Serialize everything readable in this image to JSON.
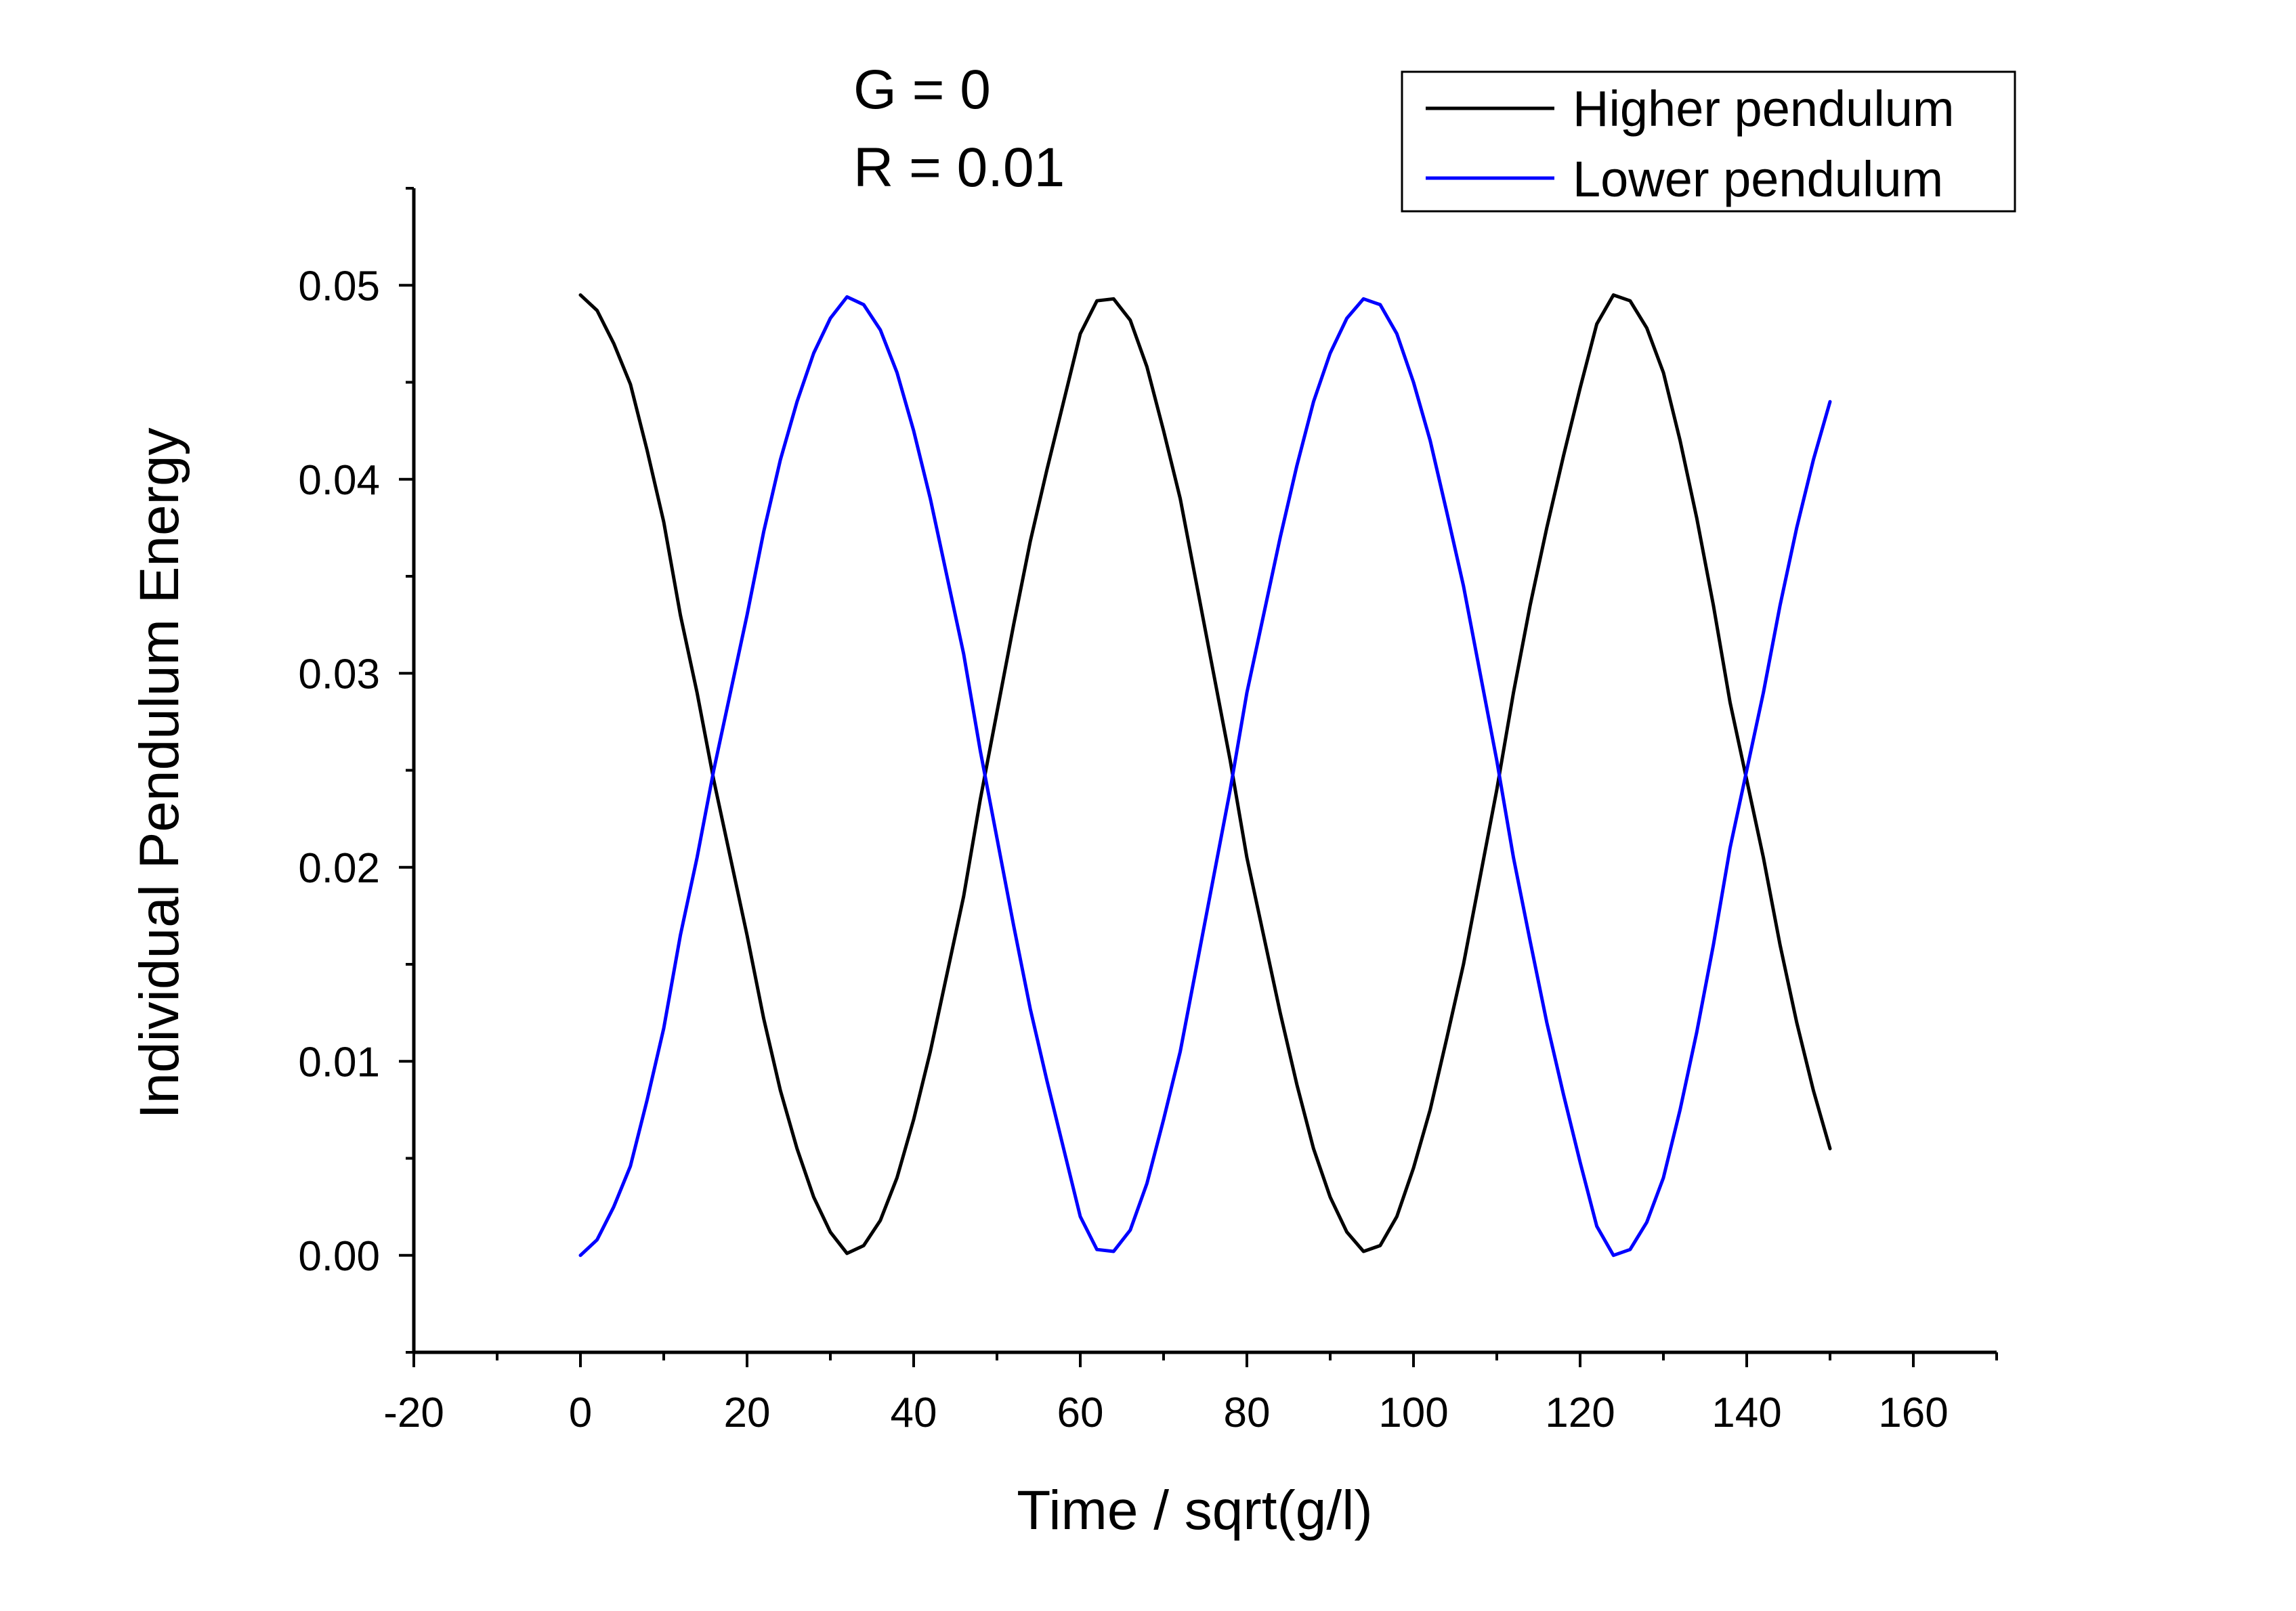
{
  "chart_data": {
    "type": "line",
    "title": "",
    "annotations": [
      "G = 0",
      "R = 0.01"
    ],
    "xlabel": "Time / sqrt(g/l)",
    "ylabel": "Individual Pendulum Energy",
    "xlim": [
      -20,
      170
    ],
    "ylim": [
      -0.005,
      0.055
    ],
    "xticks": [
      -20,
      0,
      20,
      40,
      60,
      80,
      100,
      120,
      140,
      160
    ],
    "xtick_labels": [
      "-20",
      "0",
      "20",
      "40",
      "60",
      "80",
      "100",
      "120",
      "140",
      "160"
    ],
    "yticks": [
      0.0,
      0.01,
      0.02,
      0.03,
      0.04,
      0.05
    ],
    "ytick_labels": [
      "0.00",
      "0.01",
      "0.02",
      "0.03",
      "0.04",
      "0.05"
    ],
    "grid": false,
    "legend": {
      "position": "top-right"
    },
    "colors": {
      "higher": "#000000",
      "lower": "#0000ff"
    },
    "series": [
      {
        "name": "Higher pendulum",
        "color": "#000000",
        "x": [
          0,
          2,
          4,
          6,
          8,
          10,
          12,
          14,
          16,
          18,
          20,
          22,
          24,
          26,
          28,
          30,
          32,
          34,
          36,
          38,
          40,
          42,
          44,
          46,
          48,
          50,
          52,
          54,
          56,
          58,
          60,
          62,
          64,
          66,
          68,
          70,
          72,
          74,
          76,
          78,
          80,
          82,
          84,
          86,
          88,
          90,
          92,
          94,
          96,
          98,
          100,
          102,
          104,
          106,
          108,
          110,
          112,
          114,
          116,
          118,
          120,
          122,
          124,
          126,
          128,
          130,
          132,
          134,
          136,
          138,
          140,
          142,
          144,
          146,
          148,
          150
        ],
        "y": [
          0.0495,
          0.0487,
          0.047,
          0.0449,
          0.0415,
          0.0378,
          0.033,
          0.029,
          0.0245,
          0.0205,
          0.0165,
          0.0122,
          0.0085,
          0.0055,
          0.003,
          0.0012,
          0.0001,
          0.0005,
          0.0018,
          0.004,
          0.007,
          0.0105,
          0.0145,
          0.0185,
          0.0235,
          0.028,
          0.0325,
          0.0368,
          0.0405,
          0.044,
          0.0475,
          0.0492,
          0.0493,
          0.0482,
          0.0458,
          0.0425,
          0.039,
          0.0345,
          0.03,
          0.0255,
          0.0205,
          0.0165,
          0.0125,
          0.0088,
          0.0055,
          0.003,
          0.0012,
          0.0002,
          0.0005,
          0.002,
          0.0045,
          0.0075,
          0.0112,
          0.015,
          0.0195,
          0.024,
          0.029,
          0.0335,
          0.0375,
          0.0412,
          0.0447,
          0.048,
          0.0495,
          0.0492,
          0.0478,
          0.0455,
          0.042,
          0.038,
          0.0335,
          0.0285,
          0.0245,
          0.0205,
          0.016,
          0.012,
          0.0085,
          0.0055
        ]
      },
      {
        "name": "Lower pendulum",
        "color": "#0000ff",
        "x": [
          0,
          2,
          4,
          6,
          8,
          10,
          12,
          14,
          16,
          18,
          20,
          22,
          24,
          26,
          28,
          30,
          32,
          34,
          36,
          38,
          40,
          42,
          44,
          46,
          48,
          50,
          52,
          54,
          56,
          58,
          60,
          62,
          64,
          66,
          68,
          70,
          72,
          74,
          76,
          78,
          80,
          82,
          84,
          86,
          88,
          90,
          92,
          94,
          96,
          98,
          100,
          102,
          104,
          106,
          108,
          110,
          112,
          114,
          116,
          118,
          120,
          122,
          124,
          126,
          128,
          130,
          132,
          134,
          136,
          138,
          140,
          142,
          144,
          146,
          148,
          150
        ],
        "y": [
          0.0,
          0.0008,
          0.0025,
          0.0046,
          0.008,
          0.0117,
          0.0165,
          0.0205,
          0.025,
          0.029,
          0.033,
          0.0373,
          0.041,
          0.044,
          0.0465,
          0.0483,
          0.0494,
          0.049,
          0.0477,
          0.0455,
          0.0425,
          0.039,
          0.035,
          0.031,
          0.026,
          0.0215,
          0.017,
          0.0127,
          0.009,
          0.0055,
          0.002,
          0.0003,
          0.0002,
          0.0013,
          0.0037,
          0.007,
          0.0105,
          0.015,
          0.0195,
          0.024,
          0.029,
          0.033,
          0.037,
          0.0407,
          0.044,
          0.0465,
          0.0483,
          0.0493,
          0.049,
          0.0475,
          0.045,
          0.042,
          0.0383,
          0.0345,
          0.03,
          0.0255,
          0.0205,
          0.0162,
          0.012,
          0.0083,
          0.0048,
          0.0015,
          0.0,
          0.0003,
          0.0017,
          0.004,
          0.0075,
          0.0115,
          0.016,
          0.021,
          0.025,
          0.029,
          0.0335,
          0.0375,
          0.041,
          0.044
        ]
      }
    ]
  }
}
